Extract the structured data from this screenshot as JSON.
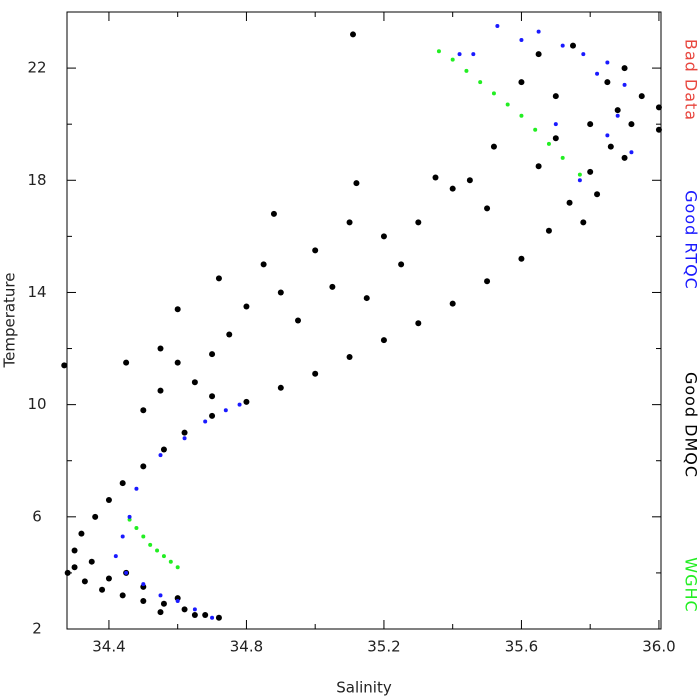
{
  "chart_data": {
    "type": "scatter",
    "x_label": "Salinity",
    "y_label": "Temperature",
    "xlim": [
      34.278,
      36.006
    ],
    "ylim": [
      2,
      24
    ],
    "xticks": [
      34.4,
      34.8,
      35.2,
      35.6,
      {
        "value": 36,
        "label": "36.0"
      }
    ],
    "yticks": [
      2,
      6,
      10,
      14,
      18,
      22
    ],
    "series": [
      {
        "name": "Bad Data",
        "color": "#e8473f",
        "x": [],
        "values": []
      },
      {
        "name": "Good RTQC",
        "color": "#1a1aff",
        "x": [
          35.53,
          35.6,
          35.65,
          35.72,
          35.78,
          35.82,
          35.85,
          35.9,
          35.88,
          35.85,
          35.92,
          35.77,
          35.46,
          35.42,
          35.7,
          34.7,
          34.65,
          34.6,
          34.55,
          34.5,
          34.45,
          34.42,
          34.44,
          34.46,
          34.48,
          34.55,
          34.62,
          34.68,
          34.74,
          34.78
        ],
        "values": [
          23.5,
          23.0,
          23.3,
          22.8,
          22.5,
          21.8,
          22.2,
          21.4,
          20.3,
          19.6,
          19.0,
          18.0,
          22.5,
          22.5,
          20.0,
          2.4,
          2.7,
          3.0,
          3.2,
          3.6,
          4.0,
          4.6,
          5.3,
          6.0,
          7.0,
          8.2,
          8.8,
          9.4,
          9.8,
          10.0
        ]
      },
      {
        "name": "Good DMQC",
        "color": "#000000",
        "x": [
          34.72,
          34.68,
          34.62,
          34.56,
          34.5,
          34.44,
          34.38,
          34.33,
          34.3,
          34.3,
          34.32,
          34.36,
          34.4,
          34.44,
          34.5,
          34.56,
          34.62,
          34.7,
          34.8,
          34.9,
          35.0,
          35.1,
          35.2,
          35.3,
          35.4,
          35.5,
          35.6,
          35.68,
          35.74,
          35.8,
          35.86,
          35.92,
          36.0,
          34.4,
          34.5,
          34.6,
          34.35,
          34.45,
          34.28,
          34.27,
          34.55,
          34.65,
          34.45,
          34.55,
          34.6,
          34.65,
          34.7,
          34.75,
          34.8,
          34.85,
          34.88,
          34.9,
          34.95,
          35.0,
          35.05,
          35.1,
          35.12,
          35.15,
          35.2,
          35.25,
          35.3,
          35.35,
          35.4,
          35.45,
          35.5,
          34.6,
          34.72,
          35.11,
          35.52,
          35.6,
          35.65,
          35.7,
          35.75,
          35.8,
          35.85,
          35.9,
          35.95,
          35.7,
          35.82,
          35.9,
          36.0,
          35.78,
          35.65,
          35.88,
          34.55,
          34.5,
          34.7
        ],
        "values": [
          2.4,
          2.5,
          2.7,
          2.9,
          3.0,
          3.2,
          3.4,
          3.7,
          4.2,
          4.8,
          5.4,
          6.0,
          6.6,
          7.2,
          7.8,
          8.4,
          9.0,
          9.6,
          10.1,
          10.6,
          11.1,
          11.7,
          12.3,
          12.9,
          13.6,
          14.4,
          15.2,
          16.2,
          17.2,
          18.3,
          19.2,
          20.0,
          20.6,
          3.8,
          3.5,
          3.1,
          4.4,
          4.0,
          4.0,
          11.4,
          2.6,
          2.5,
          11.5,
          12.0,
          11.5,
          10.8,
          11.8,
          12.5,
          13.5,
          15.0,
          16.8,
          14.0,
          13.0,
          15.5,
          14.2,
          16.5,
          17.9,
          13.8,
          16.0,
          15.0,
          16.5,
          18.1,
          17.7,
          18.0,
          17.0,
          13.4,
          14.5,
          23.2,
          19.2,
          21.5,
          22.5,
          21.0,
          22.8,
          20.0,
          21.5,
          22.0,
          21.0,
          19.5,
          17.5,
          18.8,
          19.8,
          16.5,
          18.5,
          20.5,
          10.5,
          9.8,
          10.3
        ]
      },
      {
        "name": "WGHC",
        "color": "#22ee22",
        "x": [
          35.36,
          35.4,
          35.44,
          35.48,
          35.52,
          35.56,
          35.6,
          35.64,
          35.68,
          35.72,
          35.77,
          34.46,
          34.48,
          34.5,
          34.52,
          34.54,
          34.56,
          34.58,
          34.6
        ],
        "values": [
          22.6,
          22.3,
          21.9,
          21.5,
          21.1,
          20.7,
          20.3,
          19.8,
          19.3,
          18.8,
          18.2,
          5.9,
          5.6,
          5.3,
          5.0,
          4.8,
          4.6,
          4.4,
          4.2
        ]
      }
    ]
  }
}
